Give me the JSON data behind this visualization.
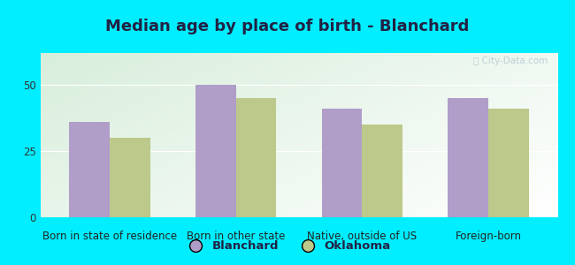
{
  "title": "Median age by place of birth - Blanchard",
  "categories": [
    "Born in state of residence",
    "Born in other state",
    "Native, outside of US",
    "Foreign-born"
  ],
  "blanchard_values": [
    36,
    50,
    41,
    45
  ],
  "oklahoma_values": [
    30,
    45,
    35,
    41
  ],
  "blanchard_color": "#b09ec9",
  "oklahoma_color": "#bcc98a",
  "background_outer": "#00eeff",
  "background_inner_topleft": "#d8eedc",
  "background_inner_topright": "#ffffff",
  "background_inner_bottom": "#c8e8cc",
  "ylim": [
    0,
    62
  ],
  "yticks": [
    0,
    25,
    50
  ],
  "bar_width": 0.32,
  "legend_labels": [
    "Blanchard",
    "Oklahoma"
  ],
  "title_fontsize": 13,
  "title_color": "#222244",
  "axis_fontsize": 8.5,
  "legend_fontsize": 9.5,
  "watermark_text": "ⓘ City-Data.com",
  "watermark_color": "#b8ccd4"
}
